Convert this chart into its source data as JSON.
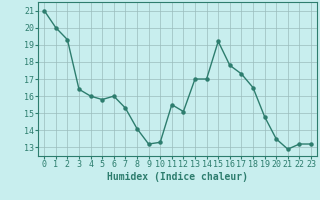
{
  "x": [
    0,
    1,
    2,
    3,
    4,
    5,
    6,
    7,
    8,
    9,
    10,
    11,
    12,
    13,
    14,
    15,
    16,
    17,
    18,
    19,
    20,
    21,
    22,
    23
  ],
  "y": [
    21,
    20,
    19.3,
    16.4,
    16,
    15.8,
    16,
    15.3,
    14.1,
    13.2,
    13.3,
    15.5,
    15.1,
    17,
    17,
    19.2,
    17.8,
    17.3,
    16.5,
    14.8,
    13.5,
    12.9,
    13.2,
    13.2
  ],
  "line_color": "#2d7d6e",
  "marker": "o",
  "marker_size": 2.2,
  "line_width": 1.0,
  "bg_color": "#c8eeee",
  "grid_color": "#9bbcbc",
  "xlabel": "Humidex (Indice chaleur)",
  "xlabel_fontsize": 7,
  "tick_fontsize": 6,
  "ylim": [
    12.5,
    21.5
  ],
  "xlim": [
    -0.5,
    23.5
  ],
  "yticks": [
    13,
    14,
    15,
    16,
    17,
    18,
    19,
    20,
    21
  ],
  "xticks": [
    0,
    1,
    2,
    3,
    4,
    5,
    6,
    7,
    8,
    9,
    10,
    11,
    12,
    13,
    14,
    15,
    16,
    17,
    18,
    19,
    20,
    21,
    22,
    23
  ]
}
